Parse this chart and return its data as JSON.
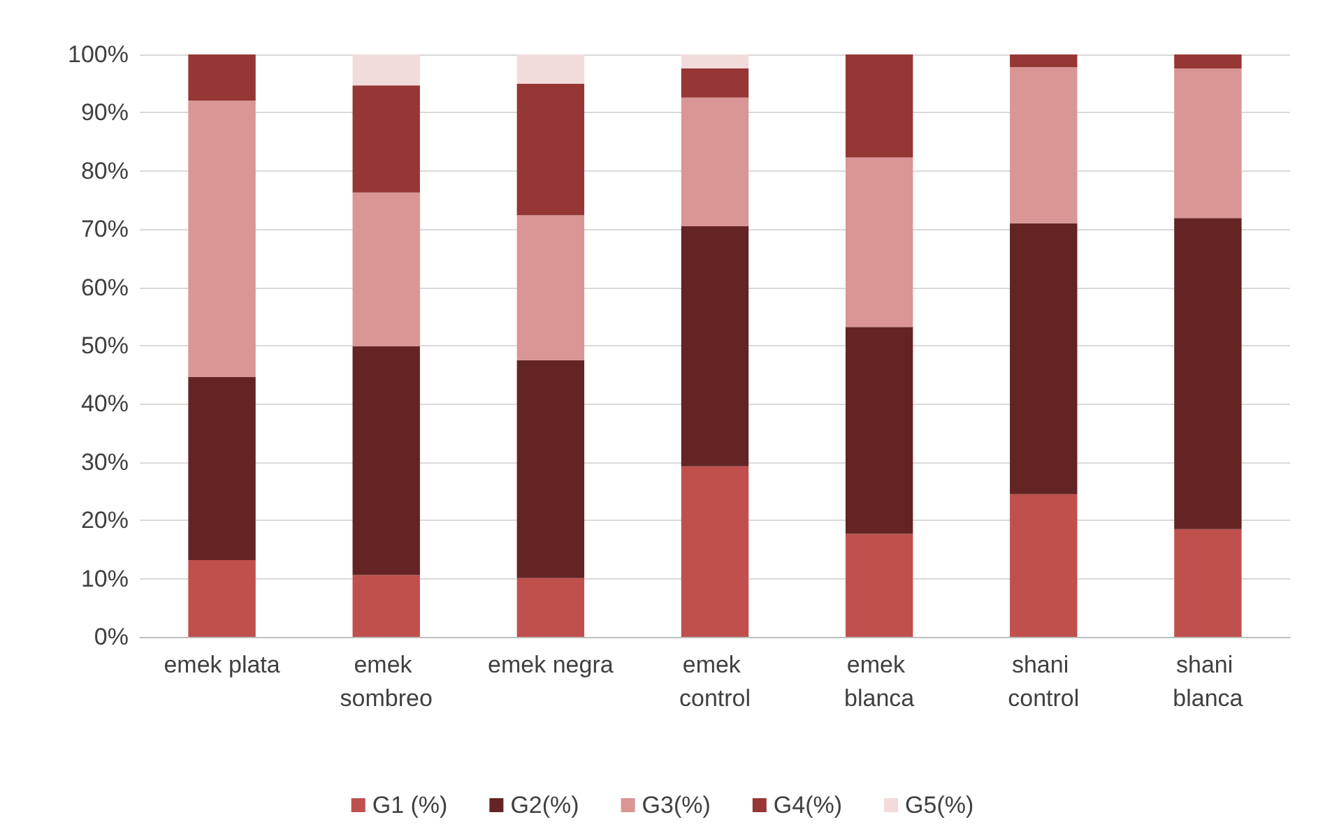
{
  "chart_data": {
    "type": "bar",
    "stacked": true,
    "categories": [
      "emek plata",
      "emek sombreo",
      "emek negra",
      "emek control",
      "emek blanca",
      "shani control",
      "shani blanca"
    ],
    "series": [
      {
        "name": "G1 (%)",
        "color": "#c0504d",
        "values": [
          13.2,
          10.6,
          10.1,
          29.3,
          17.7,
          24.5,
          18.5
        ]
      },
      {
        "name": "G2(%)",
        "color": "#632423",
        "values": [
          31.4,
          39.3,
          37.4,
          41.2,
          35.5,
          46.5,
          53.4
        ]
      },
      {
        "name": "G3(%)",
        "color": "#d99694",
        "values": [
          47.5,
          26.4,
          24.9,
          22.1,
          29.1,
          26.8,
          25.7
        ]
      },
      {
        "name": "G4(%)",
        "color": "#953735",
        "values": [
          7.9,
          18.4,
          22.6,
          5.0,
          17.7,
          2.2,
          2.4
        ]
      },
      {
        "name": "G5(%)",
        "color": "#f2dcdb",
        "values": [
          0,
          5.3,
          5.0,
          2.4,
          0,
          0,
          0
        ]
      }
    ],
    "ylim": [
      0,
      100
    ],
    "yticks": [
      {
        "value": 0,
        "label": "0%"
      },
      {
        "value": 10,
        "label": "10%"
      },
      {
        "value": 20,
        "label": "20%"
      },
      {
        "value": 30,
        "label": "30%"
      },
      {
        "value": 40,
        "label": "40%"
      },
      {
        "value": 50,
        "label": "50%"
      },
      {
        "value": 60,
        "label": "60%"
      },
      {
        "value": 70,
        "label": "70%"
      },
      {
        "value": 80,
        "label": "80%"
      },
      {
        "value": 90,
        "label": "90%"
      },
      {
        "value": 100,
        "label": "100%"
      }
    ],
    "grid": "y",
    "legend": "bottom"
  }
}
